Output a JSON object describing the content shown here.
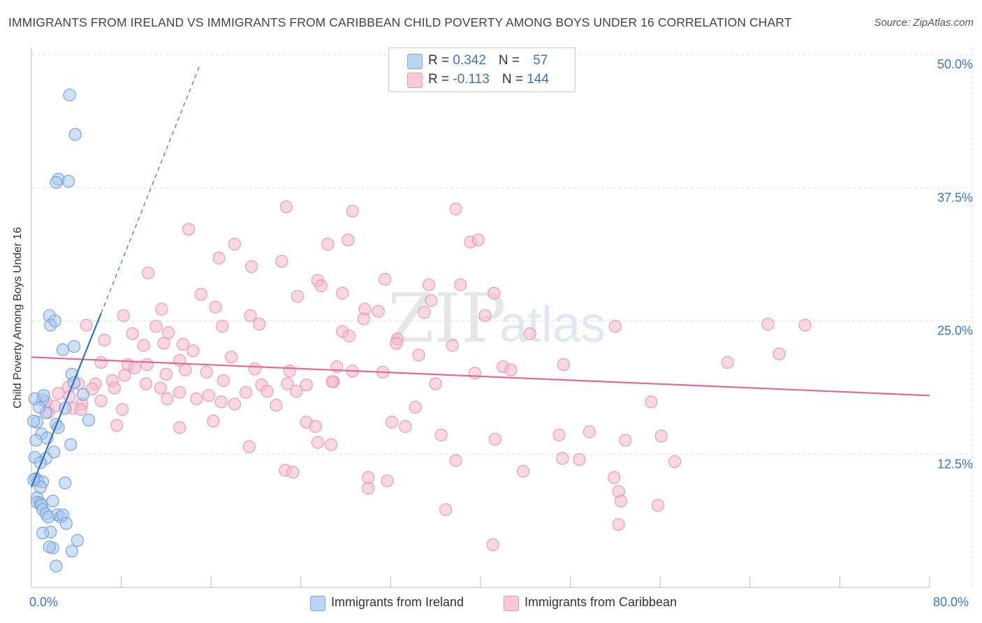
{
  "title": "IMMIGRANTS FROM IRELAND VS IMMIGRANTS FROM CARIBBEAN CHILD POVERTY AMONG BOYS UNDER 16 CORRELATION CHART",
  "source": "Source: ZipAtlas.com",
  "watermark": {
    "zip": "ZIP",
    "atlas": "atlas"
  },
  "legend": {
    "ireland": {
      "r_label": "R = ",
      "r_value": "0.342",
      "n_label": "N = ",
      "n_value": "57"
    },
    "caribbean": {
      "r_label": "R = ",
      "r_value": "-0.113",
      "n_label": "N = ",
      "n_value": "144"
    }
  },
  "colors": {
    "ireland_fill": "#a9c8f0",
    "ireland_stroke": "#6f9fdc",
    "ireland_line": "#2f6fcf",
    "caribbean_fill": "#f5b8cb",
    "caribbean_stroke": "#eb93b0",
    "caribbean_line": "#e06a93",
    "axis_label": "#3b73c7",
    "grid": "#dddddd"
  },
  "chart_data": {
    "type": "scatter",
    "title": "IMMIGRANTS FROM IRELAND VS IMMIGRANTS FROM CARIBBEAN CHILD POVERTY AMONG BOYS UNDER 16 CORRELATION CHART",
    "xlabel": "",
    "ylabel": "Child Poverty Among Boys Under 16",
    "xlim": [
      0,
      80
    ],
    "ylim": [
      0,
      50
    ],
    "x_tick_labels": [
      "0.0%",
      "80.0%"
    ],
    "y_ticks": [
      {
        "value": 12.5,
        "label": "12.5%"
      },
      {
        "value": 25,
        "label": "25.0%"
      },
      {
        "value": 37.5,
        "label": "37.5%"
      },
      {
        "value": 50,
        "label": "50.0%"
      }
    ],
    "grid": "horizontal-dashed",
    "legend_placement": "top-center",
    "series": [
      {
        "name": "Immigrants from Ireland",
        "key": "ireland",
        "trend": {
          "x0": 0,
          "y0": 9.4,
          "x1": 6.2,
          "y1": 25.7,
          "dashed_to_x": 15,
          "dashed_to_y": 49.0
        },
        "points": [
          [
            3.4,
            46.2
          ],
          [
            3.9,
            42.5
          ],
          [
            2.4,
            38.3
          ],
          [
            3.3,
            38.1
          ],
          [
            2.2,
            38.0
          ],
          [
            1.6,
            25.5
          ],
          [
            1.7,
            24.6
          ],
          [
            2.1,
            25.0
          ],
          [
            2.8,
            22.3
          ],
          [
            3.8,
            22.6
          ],
          [
            3.6,
            20.0
          ],
          [
            3.8,
            19.2
          ],
          [
            1.0,
            17.6
          ],
          [
            1.3,
            16.4
          ],
          [
            3.0,
            16.8
          ],
          [
            4.6,
            18.1
          ],
          [
            0.5,
            15.5
          ],
          [
            2.2,
            15.3
          ],
          [
            5.1,
            15.7
          ],
          [
            0.9,
            14.4
          ],
          [
            0.4,
            13.8
          ],
          [
            3.5,
            13.4
          ],
          [
            2.0,
            12.7
          ],
          [
            0.3,
            12.2
          ],
          [
            1.3,
            12.1
          ],
          [
            0.8,
            11.7
          ],
          [
            0.4,
            10.2
          ],
          [
            0.6,
            10.0
          ],
          [
            1.0,
            9.9
          ],
          [
            3.0,
            9.8
          ],
          [
            0.8,
            9.4
          ],
          [
            0.2,
            10.1
          ],
          [
            0.5,
            8.4
          ],
          [
            0.5,
            8.0
          ],
          [
            0.8,
            7.9
          ],
          [
            1.9,
            8.1
          ],
          [
            0.9,
            7.7
          ],
          [
            1.0,
            7.3
          ],
          [
            1.3,
            6.9
          ],
          [
            2.3,
            6.8
          ],
          [
            2.6,
            6.6
          ],
          [
            2.8,
            6.8
          ],
          [
            1.5,
            6.6
          ],
          [
            3.1,
            6.0
          ],
          [
            1.7,
            5.2
          ],
          [
            1.0,
            5.1
          ],
          [
            4.1,
            4.4
          ],
          [
            1.9,
            3.7
          ],
          [
            3.6,
            3.4
          ],
          [
            2.2,
            2.0
          ],
          [
            1.6,
            3.8
          ],
          [
            0.3,
            17.7
          ],
          [
            0.7,
            16.9
          ],
          [
            1.4,
            14.0
          ],
          [
            2.4,
            15.0
          ],
          [
            0.2,
            15.6
          ],
          [
            1.1,
            18.0
          ]
        ]
      },
      {
        "name": "Immigrants from Caribbean",
        "key": "caribbean",
        "trend": {
          "x0": 0,
          "y0": 21.6,
          "x1": 80,
          "y1": 18.0
        },
        "points": [
          [
            22.7,
            35.7
          ],
          [
            28.6,
            35.3
          ],
          [
            37.8,
            35.5
          ],
          [
            14.0,
            33.6
          ],
          [
            18.1,
            32.2
          ],
          [
            26.4,
            32.2
          ],
          [
            28.2,
            32.6
          ],
          [
            39.1,
            32.4
          ],
          [
            39.8,
            32.6
          ],
          [
            16.7,
            30.9
          ],
          [
            19.6,
            30.1
          ],
          [
            22.3,
            30.6
          ],
          [
            10.4,
            29.5
          ],
          [
            25.5,
            28.8
          ],
          [
            31.5,
            28.9
          ],
          [
            35.4,
            28.4
          ],
          [
            38.2,
            28.4
          ],
          [
            15.1,
            27.5
          ],
          [
            23.7,
            27.3
          ],
          [
            25.8,
            28.3
          ],
          [
            27.7,
            27.6
          ],
          [
            41.2,
            27.6
          ],
          [
            11.6,
            26.1
          ],
          [
            16.4,
            26.3
          ],
          [
            29.7,
            26.1
          ],
          [
            35.6,
            26.9
          ],
          [
            19.5,
            25.5
          ],
          [
            30.9,
            25.9
          ],
          [
            35.0,
            25.8
          ],
          [
            40.4,
            25.5
          ],
          [
            8.2,
            25.5
          ],
          [
            4.9,
            24.6
          ],
          [
            11.1,
            24.5
          ],
          [
            17.0,
            24.5
          ],
          [
            20.3,
            24.7
          ],
          [
            29.6,
            25.2
          ],
          [
            52.0,
            24.5
          ],
          [
            65.6,
            24.7
          ],
          [
            68.9,
            24.6
          ],
          [
            27.7,
            24.0
          ],
          [
            9.0,
            23.8
          ],
          [
            12.2,
            23.9
          ],
          [
            28.3,
            23.6
          ],
          [
            32.6,
            23.3
          ],
          [
            44.4,
            23.8
          ],
          [
            6.5,
            23.2
          ],
          [
            10.0,
            22.7
          ],
          [
            11.8,
            22.9
          ],
          [
            13.5,
            22.8
          ],
          [
            14.4,
            22.2
          ],
          [
            32.5,
            22.9
          ],
          [
            37.5,
            22.7
          ],
          [
            66.6,
            21.9
          ],
          [
            6.2,
            21.1
          ],
          [
            8.6,
            20.9
          ],
          [
            10.3,
            20.9
          ],
          [
            13.2,
            21.3
          ],
          [
            17.8,
            21.6
          ],
          [
            34.5,
            21.8
          ],
          [
            9.2,
            20.6
          ],
          [
            13.7,
            20.4
          ],
          [
            19.9,
            20.5
          ],
          [
            27.2,
            20.7
          ],
          [
            42.0,
            20.7
          ],
          [
            47.4,
            20.9
          ],
          [
            62.0,
            21.1
          ],
          [
            8.3,
            19.9
          ],
          [
            12.0,
            20.0
          ],
          [
            15.6,
            20.2
          ],
          [
            23.0,
            20.3
          ],
          [
            39.5,
            20.1
          ],
          [
            42.7,
            20.4
          ],
          [
            4.2,
            19.1
          ],
          [
            5.7,
            19.1
          ],
          [
            7.2,
            19.4
          ],
          [
            10.2,
            19.1
          ],
          [
            17.1,
            19.4
          ],
          [
            20.5,
            19.0
          ],
          [
            22.8,
            19.1
          ],
          [
            24.5,
            19.0
          ],
          [
            26.9,
            19.3
          ],
          [
            28.6,
            20.3
          ],
          [
            31.3,
            20.2
          ],
          [
            36.0,
            19.1
          ],
          [
            3.3,
            18.8
          ],
          [
            5.4,
            18.6
          ],
          [
            7.4,
            18.7
          ],
          [
            11.5,
            18.7
          ],
          [
            13.2,
            18.3
          ],
          [
            15.8,
            18.0
          ],
          [
            19.1,
            18.3
          ],
          [
            21.0,
            18.4
          ],
          [
            23.6,
            18.4
          ],
          [
            26.8,
            19.3
          ],
          [
            2.4,
            18.2
          ],
          [
            3.4,
            17.9
          ],
          [
            4.5,
            17.2
          ],
          [
            6.2,
            17.5
          ],
          [
            12.1,
            17.7
          ],
          [
            16.9,
            17.4
          ],
          [
            18.1,
            17.2
          ],
          [
            1.3,
            17.4
          ],
          [
            2.1,
            17.0
          ],
          [
            3.7,
            16.8
          ],
          [
            8.1,
            16.7
          ],
          [
            14.7,
            17.7
          ],
          [
            21.8,
            17.1
          ],
          [
            34.2,
            16.9
          ],
          [
            55.2,
            17.4
          ],
          [
            1.5,
            16.4
          ],
          [
            4.4,
            16.7
          ],
          [
            16.2,
            15.6
          ],
          [
            24.5,
            15.5
          ],
          [
            25.3,
            15.1
          ],
          [
            32.1,
            15.5
          ],
          [
            33.3,
            15.1
          ],
          [
            7.6,
            15.2
          ],
          [
            13.2,
            15.0
          ],
          [
            36.5,
            14.3
          ],
          [
            41.3,
            13.9
          ],
          [
            47.0,
            14.3
          ],
          [
            49.7,
            14.6
          ],
          [
            52.9,
            13.8
          ],
          [
            56.1,
            14.2
          ],
          [
            25.5,
            13.6
          ],
          [
            26.7,
            13.4
          ],
          [
            19.4,
            13.2
          ],
          [
            22.6,
            11.0
          ],
          [
            23.3,
            10.8
          ],
          [
            30.0,
            10.3
          ],
          [
            31.7,
            10.0
          ],
          [
            37.8,
            11.9
          ],
          [
            43.8,
            10.9
          ],
          [
            47.3,
            12.1
          ],
          [
            48.8,
            12.0
          ],
          [
            51.9,
            10.3
          ],
          [
            57.3,
            11.8
          ],
          [
            52.3,
            9.0
          ],
          [
            52.5,
            8.1
          ],
          [
            55.8,
            7.7
          ],
          [
            36.9,
            7.3
          ],
          [
            52.3,
            5.9
          ],
          [
            30.0,
            9.3
          ],
          [
            41.1,
            4.0
          ]
        ]
      }
    ]
  },
  "bottom_legend": {
    "ireland_label": "Immigrants from Ireland",
    "caribbean_label": "Immigrants from Caribbean"
  }
}
